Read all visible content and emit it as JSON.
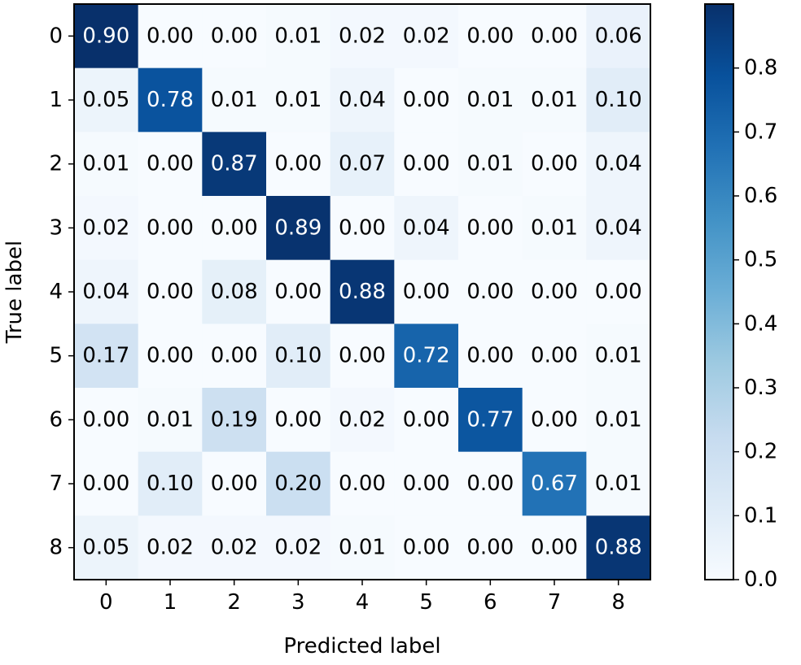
{
  "chart_data": {
    "type": "heatmap",
    "xlabel": "Predicted label",
    "ylabel": "True label",
    "x_categories": [
      "0",
      "1",
      "2",
      "3",
      "4",
      "5",
      "6",
      "7",
      "8"
    ],
    "y_categories": [
      "0",
      "1",
      "2",
      "3",
      "4",
      "5",
      "6",
      "7",
      "8"
    ],
    "matrix": [
      [
        "0.90",
        "0.00",
        "0.00",
        "0.01",
        "0.02",
        "0.02",
        "0.00",
        "0.00",
        "0.06"
      ],
      [
        "0.05",
        "0.78",
        "0.01",
        "0.01",
        "0.04",
        "0.00",
        "0.01",
        "0.01",
        "0.10"
      ],
      [
        "0.01",
        "0.00",
        "0.87",
        "0.00",
        "0.07",
        "0.00",
        "0.01",
        "0.00",
        "0.04"
      ],
      [
        "0.02",
        "0.00",
        "0.00",
        "0.89",
        "0.00",
        "0.04",
        "0.00",
        "0.01",
        "0.04"
      ],
      [
        "0.04",
        "0.00",
        "0.08",
        "0.00",
        "0.88",
        "0.00",
        "0.00",
        "0.00",
        "0.00"
      ],
      [
        "0.17",
        "0.00",
        "0.00",
        "0.10",
        "0.00",
        "0.72",
        "0.00",
        "0.00",
        "0.01"
      ],
      [
        "0.00",
        "0.01",
        "0.19",
        "0.00",
        "0.02",
        "0.00",
        "0.77",
        "0.00",
        "0.01"
      ],
      [
        "0.00",
        "0.10",
        "0.00",
        "0.20",
        "0.00",
        "0.00",
        "0.00",
        "0.67",
        "0.01"
      ],
      [
        "0.05",
        "0.02",
        "0.02",
        "0.02",
        "0.01",
        "0.00",
        "0.00",
        "0.00",
        "0.88"
      ]
    ],
    "colormap": "Blues",
    "color_range": [
      0.0,
      0.9
    ],
    "colorbar_ticks": [
      "0.0",
      "0.1",
      "0.2",
      "0.3",
      "0.4",
      "0.5",
      "0.6",
      "0.7",
      "0.8"
    ],
    "text_color_light": "#ffffff",
    "text_color_dark": "#000000",
    "grid": false
  }
}
